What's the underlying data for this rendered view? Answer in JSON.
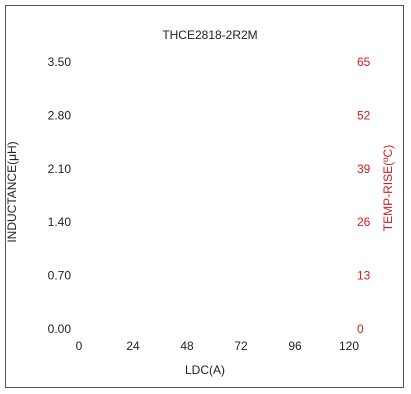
{
  "chart_data": {
    "type": "line",
    "title": "THCE2818-2R2M",
    "xlabel": "LDC(A)",
    "ylabel": "INDUCTANCE(μH)",
    "y2label": "TEMP-RISE(ºC)",
    "x_ticks": [
      "0",
      "24",
      "48",
      "72",
      "96",
      "120"
    ],
    "y_ticks": [
      "0.00",
      "0.70",
      "1.40",
      "2.10",
      "2.80",
      "3.50"
    ],
    "y2_ticks": [
      "0",
      "13",
      "26",
      "39",
      "52",
      "65"
    ],
    "xlim": [
      0,
      120
    ],
    "ylim": [
      0,
      3.5
    ],
    "y2lim": [
      0,
      65
    ],
    "grid": false,
    "series": [],
    "colors": {
      "primary_axis": "#222222",
      "secondary_axis": "#cc1f1f"
    }
  }
}
